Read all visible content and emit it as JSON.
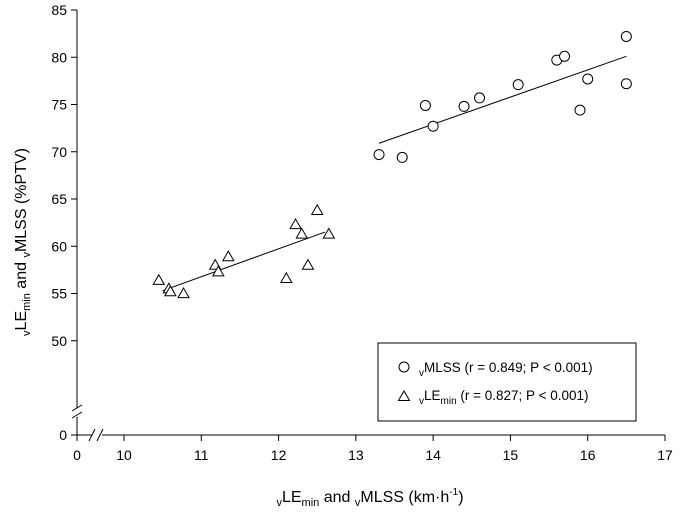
{
  "chart_data": {
    "type": "scatter",
    "x_axis": {
      "title_main": "LE",
      "title_main_sub": "min",
      "title_and": " and ",
      "title_second": "MLSS (km·h",
      "title_exp": "-1",
      "title_close": ")",
      "title_prefix": "v",
      "range": [
        10,
        17
      ],
      "ticks": [
        "10",
        "11",
        "12",
        "13",
        "14",
        "15",
        "16",
        "17"
      ],
      "zero_label": "0",
      "broken": true
    },
    "y_axis": {
      "title_prefix": "v",
      "title_main": "LE",
      "title_main_sub": "min",
      "title_and": " and ",
      "title_second": "MLSS (%PTV)",
      "range": [
        45,
        85
      ],
      "ticks": [
        "50",
        "55",
        "60",
        "65",
        "70",
        "75",
        "80",
        "85"
      ],
      "zero_label": "0",
      "broken": true
    },
    "grid": false,
    "legend_position": "bottom-right",
    "series": [
      {
        "name": "MLSS",
        "name_prefix": "v",
        "stats": " (r = 0.849; P < 0.001)",
        "marker": "circle",
        "points": [
          [
            13.3,
            69.7
          ],
          [
            13.6,
            69.4
          ],
          [
            13.9,
            74.9
          ],
          [
            14.0,
            72.7
          ],
          [
            14.4,
            74.8
          ],
          [
            14.6,
            75.7
          ],
          [
            15.1,
            77.1
          ],
          [
            15.6,
            79.7
          ],
          [
            15.7,
            80.1
          ],
          [
            16.0,
            77.7
          ],
          [
            15.9,
            74.4
          ],
          [
            16.5,
            82.2
          ],
          [
            16.5,
            77.2
          ]
        ],
        "fit_line": [
          [
            13.3,
            70.9
          ],
          [
            16.5,
            80.1
          ]
        ]
      },
      {
        "name": "LE",
        "name_prefix": "v",
        "name_sub": "min",
        "stats": " (r = 0.827; P < 0.001)",
        "marker": "triangle",
        "points": [
          [
            10.45,
            56.4
          ],
          [
            10.58,
            55.5
          ],
          [
            10.6,
            55.2
          ],
          [
            10.77,
            55.0
          ],
          [
            11.18,
            58.0
          ],
          [
            11.22,
            57.3
          ],
          [
            11.35,
            58.9
          ],
          [
            12.1,
            56.6
          ],
          [
            12.22,
            62.3
          ],
          [
            12.3,
            61.3
          ],
          [
            12.38,
            58.0
          ],
          [
            12.5,
            63.8
          ],
          [
            12.65,
            61.3
          ]
        ],
        "fit_line": [
          [
            10.5,
            55.3
          ],
          [
            12.6,
            61.5
          ]
        ]
      }
    ]
  }
}
